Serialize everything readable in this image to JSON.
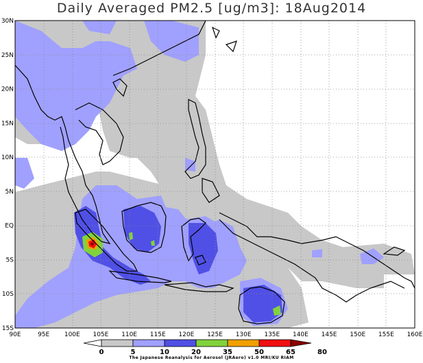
{
  "title": "Daily Averaged PM2.5 [ug/m3]: 18Aug2014",
  "map": {
    "lon_range": [
      90,
      160
    ],
    "lat_range": [
      -15,
      30
    ],
    "lon_labels": [
      "90E",
      "95E",
      "100E",
      "105E",
      "110E",
      "115E",
      "120E",
      "125E",
      "130E",
      "135E",
      "140E",
      "145E",
      "150E",
      "155E",
      "160E"
    ],
    "lat_labels": [
      "30N",
      "25N",
      "20N",
      "15N",
      "10N",
      "5N",
      "EQ",
      "5S",
      "10S",
      "15S"
    ]
  },
  "colorbar": {
    "thresholds": [
      "0",
      "5",
      "10",
      "20",
      "35",
      "50",
      "65",
      "80"
    ],
    "colors": [
      "#ffffff",
      "#c8c8c8",
      "#a0a0ff",
      "#5050e6",
      "#82d23c",
      "#f0a000",
      "#f01010",
      "#8c0000"
    ]
  },
  "credit": "The Japanese Reanalysis for Aerosol (JRAero) v1.0 MRI/KU RIAM"
}
